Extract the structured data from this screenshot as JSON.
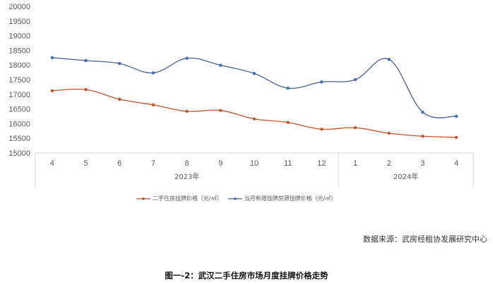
{
  "chart_data": {
    "type": "line",
    "title": "图一-2：武汉二手住房市场月度挂牌价格走势",
    "xlabel": "",
    "ylabel": "",
    "ylim": [
      15000,
      20000
    ],
    "yticks": [
      15000,
      15500,
      16000,
      16500,
      17000,
      17500,
      18000,
      18500,
      19000,
      19500,
      20000
    ],
    "grid": false,
    "smooth": true,
    "legend_position": "bottom",
    "categories": [
      "4",
      "5",
      "6",
      "7",
      "8",
      "9",
      "10",
      "11",
      "12",
      "1",
      "2",
      "3",
      "4"
    ],
    "year_groups": [
      {
        "label": "2023年",
        "span": 9
      },
      {
        "label": "2024年",
        "span": 4
      }
    ],
    "series": [
      {
        "name": "二手住房挂牌价格（元/㎡）",
        "color": "#c5522b",
        "values": [
          17120,
          17160,
          16830,
          16640,
          16420,
          16450,
          16160,
          16040,
          15810,
          15860,
          15670,
          15570,
          15530
        ]
      },
      {
        "name": "当月新增挂牌房源挂牌价格（元/㎡）",
        "color": "#4a5f9c",
        "marker_color": "#3d6cb9",
        "values": [
          18250,
          18150,
          18050,
          17730,
          18230,
          17990,
          17710,
          17210,
          17420,
          17500,
          18190,
          16390,
          16250
        ]
      }
    ]
  },
  "source_note": "数据来源：武房经租协发展研究中心",
  "caption": "图一-2：武汉二手住房市场月度挂牌价格走势"
}
